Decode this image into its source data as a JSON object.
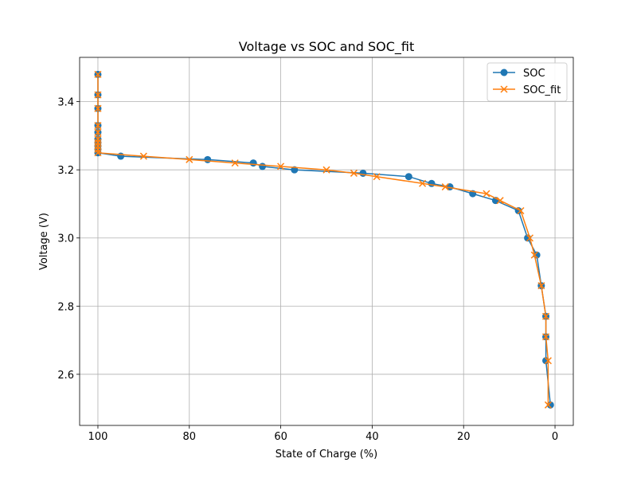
{
  "chart_data": {
    "type": "line",
    "title": "Voltage vs SOC and SOC_fit",
    "xlabel": "State of Charge (%)",
    "ylabel": "Voltage (V)",
    "xlim": [
      104,
      -4
    ],
    "ylim": [
      2.45,
      3.53
    ],
    "x_inverted": true,
    "grid": true,
    "legend_position": "top-right",
    "xticks": [
      100,
      80,
      60,
      40,
      20,
      0
    ],
    "yticks": [
      2.6,
      2.8,
      3.0,
      3.2,
      3.4
    ],
    "xtick_labels": [
      "100",
      "80",
      "60",
      "40",
      "20",
      "0"
    ],
    "ytick_labels": [
      "2.6",
      "2.8",
      "3.0",
      "3.2",
      "3.4"
    ],
    "series": [
      {
        "name": "SOC",
        "color": "#1f77b4",
        "marker": "circle",
        "points": [
          [
            100,
            3.48
          ],
          [
            100,
            3.42
          ],
          [
            100,
            3.38
          ],
          [
            100,
            3.33
          ],
          [
            100,
            3.31
          ],
          [
            100,
            3.29
          ],
          [
            100,
            3.28
          ],
          [
            100,
            3.27
          ],
          [
            100,
            3.26
          ],
          [
            100,
            3.25
          ],
          [
            95,
            3.24
          ],
          [
            76,
            3.23
          ],
          [
            66,
            3.22
          ],
          [
            64,
            3.21
          ],
          [
            57,
            3.2
          ],
          [
            42,
            3.19
          ],
          [
            32,
            3.18
          ],
          [
            27,
            3.16
          ],
          [
            23,
            3.15
          ],
          [
            18,
            3.13
          ],
          [
            13,
            3.11
          ],
          [
            8,
            3.08
          ],
          [
            6,
            3.0
          ],
          [
            4,
            2.95
          ],
          [
            3,
            2.86
          ],
          [
            2,
            2.77
          ],
          [
            2,
            2.71
          ],
          [
            2,
            2.64
          ],
          [
            1,
            2.51
          ]
        ]
      },
      {
        "name": "SOC_fit",
        "color": "#ff7f0e",
        "marker": "x",
        "points": [
          [
            100,
            3.48
          ],
          [
            100,
            3.42
          ],
          [
            100,
            3.38
          ],
          [
            100,
            3.33
          ],
          [
            100,
            3.31
          ],
          [
            100,
            3.29
          ],
          [
            100,
            3.28
          ],
          [
            100,
            3.27
          ],
          [
            100,
            3.26
          ],
          [
            100,
            3.25
          ],
          [
            90,
            3.24
          ],
          [
            80,
            3.23
          ],
          [
            70,
            3.22
          ],
          [
            60,
            3.21
          ],
          [
            50,
            3.2
          ],
          [
            44,
            3.19
          ],
          [
            39,
            3.18
          ],
          [
            29,
            3.16
          ],
          [
            24,
            3.15
          ],
          [
            15,
            3.13
          ],
          [
            12,
            3.11
          ],
          [
            7.5,
            3.08
          ],
          [
            5.5,
            3.0
          ],
          [
            4.5,
            2.95
          ],
          [
            3,
            2.86
          ],
          [
            2,
            2.77
          ],
          [
            2,
            2.71
          ],
          [
            1.5,
            2.64
          ],
          [
            1.5,
            2.51
          ]
        ]
      }
    ]
  }
}
